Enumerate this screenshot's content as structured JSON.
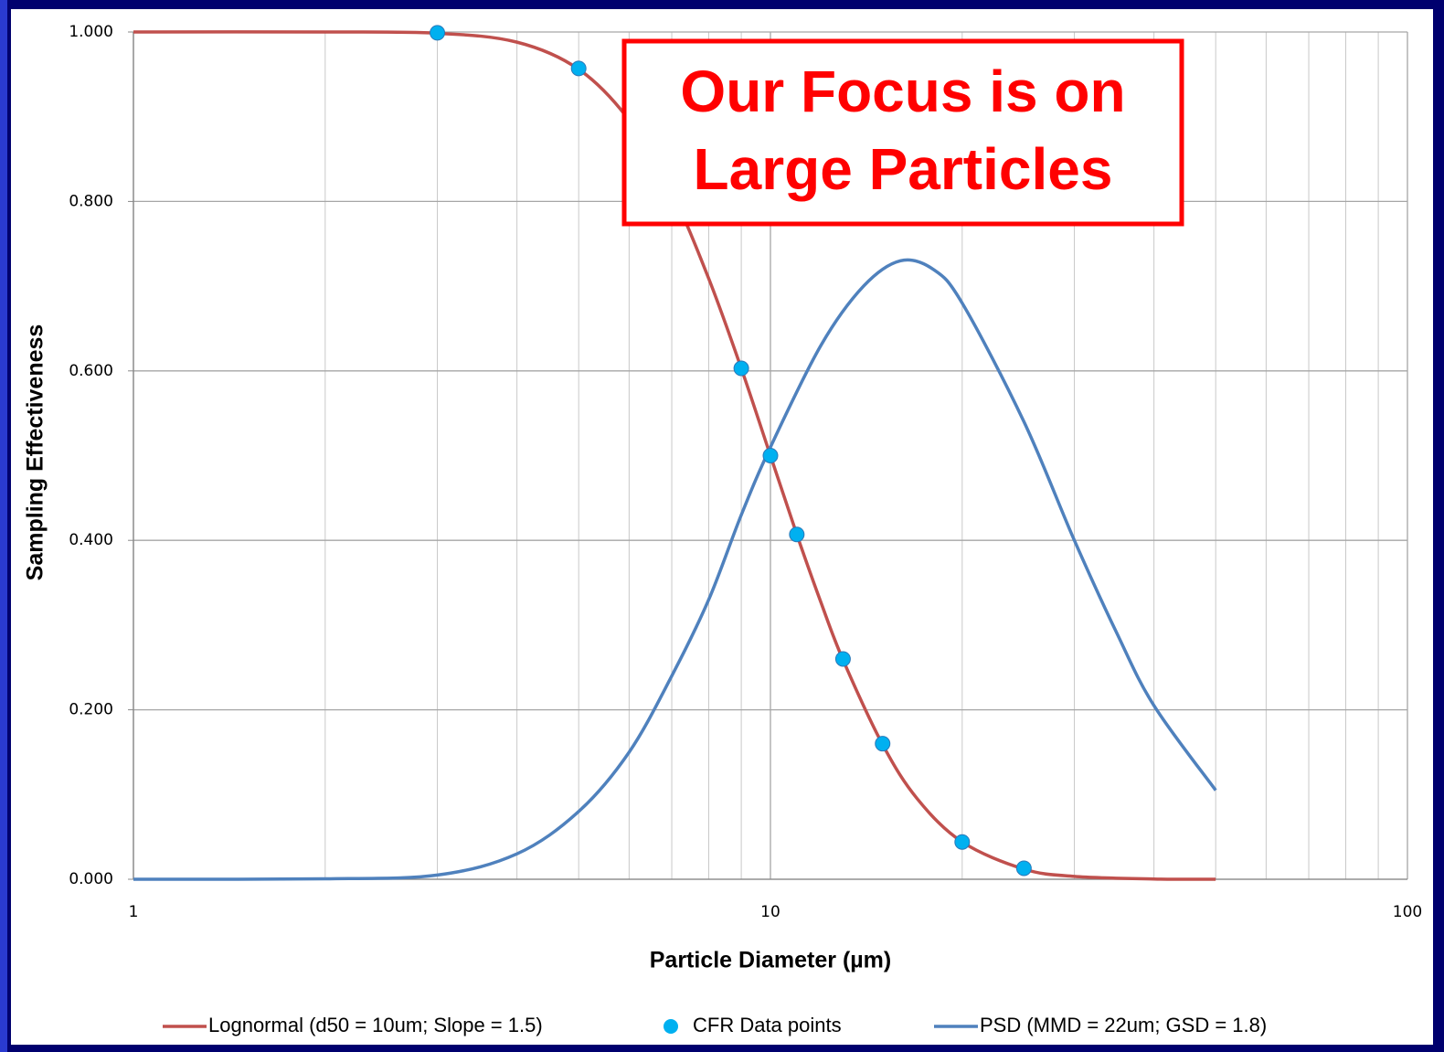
{
  "chart_data": {
    "type": "line",
    "xlabel": "Particle Diameter (µm)",
    "ylabel": "Sampling Effectiveness",
    "annotation": [
      "Our Focus is on",
      "Large Particles"
    ],
    "xscale": "log",
    "xlim": [
      1,
      100
    ],
    "xticks": [
      1,
      10,
      100
    ],
    "minor_xticks": [
      2,
      3,
      4,
      5,
      6,
      7,
      8,
      9,
      20,
      30,
      40,
      50,
      60,
      70,
      80,
      90
    ],
    "ylim": [
      0,
      1
    ],
    "yticks": [
      {
        "value": 0,
        "label": "0.000"
      },
      {
        "value": 0.2,
        "label": "0.200"
      },
      {
        "value": 0.4,
        "label": "0.400"
      },
      {
        "value": 0.6,
        "label": "0.600"
      },
      {
        "value": 0.8,
        "label": "0.800"
      },
      {
        "value": 1,
        "label": "1.000"
      }
    ],
    "grid": true,
    "legend": "bottom",
    "series": [
      {
        "name": "Lognormal (d50 = 10um; Slope = 1.5)",
        "color": "#c0504d",
        "mode": "line",
        "x": [
          1,
          2,
          3,
          4,
          5,
          6,
          7,
          8,
          9,
          10,
          11,
          12,
          13,
          15,
          17,
          20,
          25,
          30,
          40,
          50
        ],
        "values": [
          1.0,
          1.0,
          0.9985,
          0.988,
          0.956,
          0.896,
          0.811,
          0.709,
          0.603,
          0.5,
          0.407,
          0.327,
          0.259,
          0.159,
          0.095,
          0.044,
          0.012,
          0.0034,
          0.0003,
          0.0
        ]
      },
      {
        "name": "CFR Data points",
        "color": "#00b0f0",
        "mode": "markers",
        "x": [
          3,
          5,
          9,
          10,
          11,
          13,
          15,
          20,
          25
        ],
        "values": [
          0.999,
          0.957,
          0.603,
          0.5,
          0.407,
          0.26,
          0.16,
          0.044,
          0.013
        ]
      },
      {
        "name": "PSD (MMD = 22um; GSD = 1.8)",
        "color": "#4f81bd",
        "mode": "line",
        "x": [
          1,
          2,
          3,
          4,
          5,
          6,
          7,
          8,
          9,
          10,
          12,
          14,
          16,
          18,
          20,
          25,
          30,
          35,
          40,
          50
        ],
        "values": [
          0.0,
          0.0005,
          0.005,
          0.03,
          0.08,
          0.15,
          0.24,
          0.33,
          0.43,
          0.51,
          0.63,
          0.7,
          0.73,
          0.72,
          0.68,
          0.54,
          0.4,
          0.29,
          0.205,
          0.105
        ]
      }
    ]
  }
}
